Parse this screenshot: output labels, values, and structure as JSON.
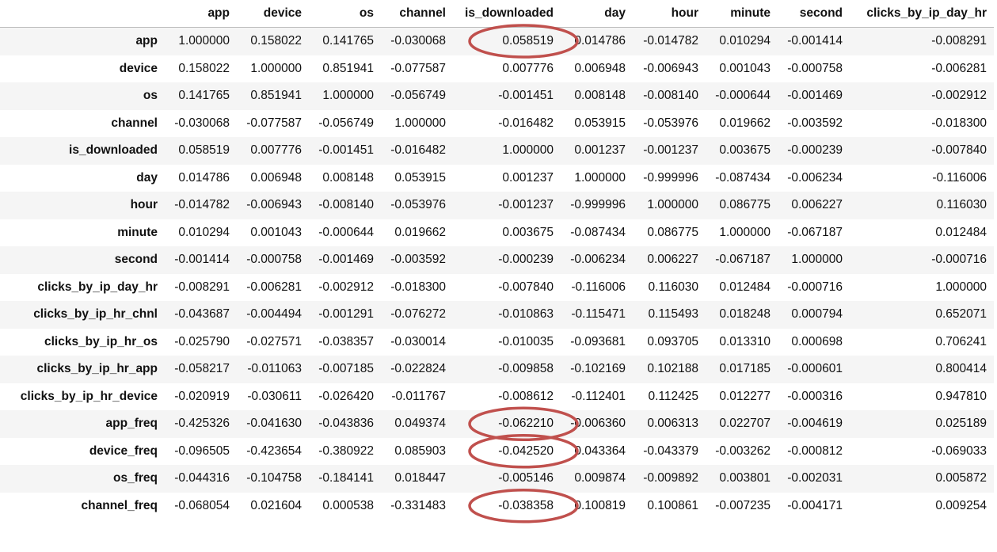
{
  "columns": [
    "app",
    "device",
    "os",
    "channel",
    "is_downloaded",
    "day",
    "hour",
    "minute",
    "second",
    "clicks_by_ip_day_hr"
  ],
  "rows": [
    {
      "label": "app",
      "values": [
        "1.000000",
        "0.158022",
        "0.141765",
        "-0.030068",
        "0.058519",
        "0.014786",
        "-0.014782",
        "0.010294",
        "-0.001414",
        "-0.008291"
      ]
    },
    {
      "label": "device",
      "values": [
        "0.158022",
        "1.000000",
        "0.851941",
        "-0.077587",
        "0.007776",
        "0.006948",
        "-0.006943",
        "0.001043",
        "-0.000758",
        "-0.006281"
      ]
    },
    {
      "label": "os",
      "values": [
        "0.141765",
        "0.851941",
        "1.000000",
        "-0.056749",
        "-0.001451",
        "0.008148",
        "-0.008140",
        "-0.000644",
        "-0.001469",
        "-0.002912"
      ]
    },
    {
      "label": "channel",
      "values": [
        "-0.030068",
        "-0.077587",
        "-0.056749",
        "1.000000",
        "-0.016482",
        "0.053915",
        "-0.053976",
        "0.019662",
        "-0.003592",
        "-0.018300"
      ]
    },
    {
      "label": "is_downloaded",
      "values": [
        "0.058519",
        "0.007776",
        "-0.001451",
        "-0.016482",
        "1.000000",
        "0.001237",
        "-0.001237",
        "0.003675",
        "-0.000239",
        "-0.007840"
      ]
    },
    {
      "label": "day",
      "values": [
        "0.014786",
        "0.006948",
        "0.008148",
        "0.053915",
        "0.001237",
        "1.000000",
        "-0.999996",
        "-0.087434",
        "-0.006234",
        "-0.116006"
      ]
    },
    {
      "label": "hour",
      "values": [
        "-0.014782",
        "-0.006943",
        "-0.008140",
        "-0.053976",
        "-0.001237",
        "-0.999996",
        "1.000000",
        "0.086775",
        "0.006227",
        "0.116030"
      ]
    },
    {
      "label": "minute",
      "values": [
        "0.010294",
        "0.001043",
        "-0.000644",
        "0.019662",
        "0.003675",
        "-0.087434",
        "0.086775",
        "1.000000",
        "-0.067187",
        "0.012484"
      ]
    },
    {
      "label": "second",
      "values": [
        "-0.001414",
        "-0.000758",
        "-0.001469",
        "-0.003592",
        "-0.000239",
        "-0.006234",
        "0.006227",
        "-0.067187",
        "1.000000",
        "-0.000716"
      ]
    },
    {
      "label": "clicks_by_ip_day_hr",
      "values": [
        "-0.008291",
        "-0.006281",
        "-0.002912",
        "-0.018300",
        "-0.007840",
        "-0.116006",
        "0.116030",
        "0.012484",
        "-0.000716",
        "1.000000"
      ]
    },
    {
      "label": "clicks_by_ip_hr_chnl",
      "values": [
        "-0.043687",
        "-0.004494",
        "-0.001291",
        "-0.076272",
        "-0.010863",
        "-0.115471",
        "0.115493",
        "0.018248",
        "0.000794",
        "0.652071"
      ]
    },
    {
      "label": "clicks_by_ip_hr_os",
      "values": [
        "-0.025790",
        "-0.027571",
        "-0.038357",
        "-0.030014",
        "-0.010035",
        "-0.093681",
        "0.093705",
        "0.013310",
        "0.000698",
        "0.706241"
      ]
    },
    {
      "label": "clicks_by_ip_hr_app",
      "values": [
        "-0.058217",
        "-0.011063",
        "-0.007185",
        "-0.022824",
        "-0.009858",
        "-0.102169",
        "0.102188",
        "0.017185",
        "-0.000601",
        "0.800414"
      ]
    },
    {
      "label": "clicks_by_ip_hr_device",
      "values": [
        "-0.020919",
        "-0.030611",
        "-0.026420",
        "-0.011767",
        "-0.008612",
        "-0.112401",
        "0.112425",
        "0.012277",
        "-0.000316",
        "0.947810"
      ]
    },
    {
      "label": "app_freq",
      "values": [
        "-0.425326",
        "-0.041630",
        "-0.043836",
        "0.049374",
        "-0.062210",
        "-0.006360",
        "0.006313",
        "0.022707",
        "-0.004619",
        "0.025189"
      ]
    },
    {
      "label": "device_freq",
      "values": [
        "-0.096505",
        "-0.423654",
        "-0.380922",
        "0.085903",
        "-0.042520",
        "0.043364",
        "-0.043379",
        "-0.003262",
        "-0.000812",
        "-0.069033"
      ]
    },
    {
      "label": "os_freq",
      "values": [
        "-0.044316",
        "-0.104758",
        "-0.184141",
        "0.018447",
        "-0.005146",
        "0.009874",
        "-0.009892",
        "0.003801",
        "-0.002031",
        "0.005872"
      ]
    },
    {
      "label": "channel_freq",
      "values": [
        "-0.068054",
        "0.021604",
        "0.000538",
        "-0.331483",
        "-0.038358",
        "0.100819",
        "0.100861",
        "-0.007235",
        "-0.004171",
        "0.009254"
      ]
    }
  ],
  "highlights": {
    "color": "#c0504d",
    "circled": [
      {
        "row": "app",
        "column": "is_downloaded"
      },
      {
        "row": "app_freq",
        "column": "is_downloaded"
      },
      {
        "row": "device_freq",
        "column": "is_downloaded"
      },
      {
        "row": "channel_freq",
        "column": "is_downloaded"
      }
    ]
  }
}
